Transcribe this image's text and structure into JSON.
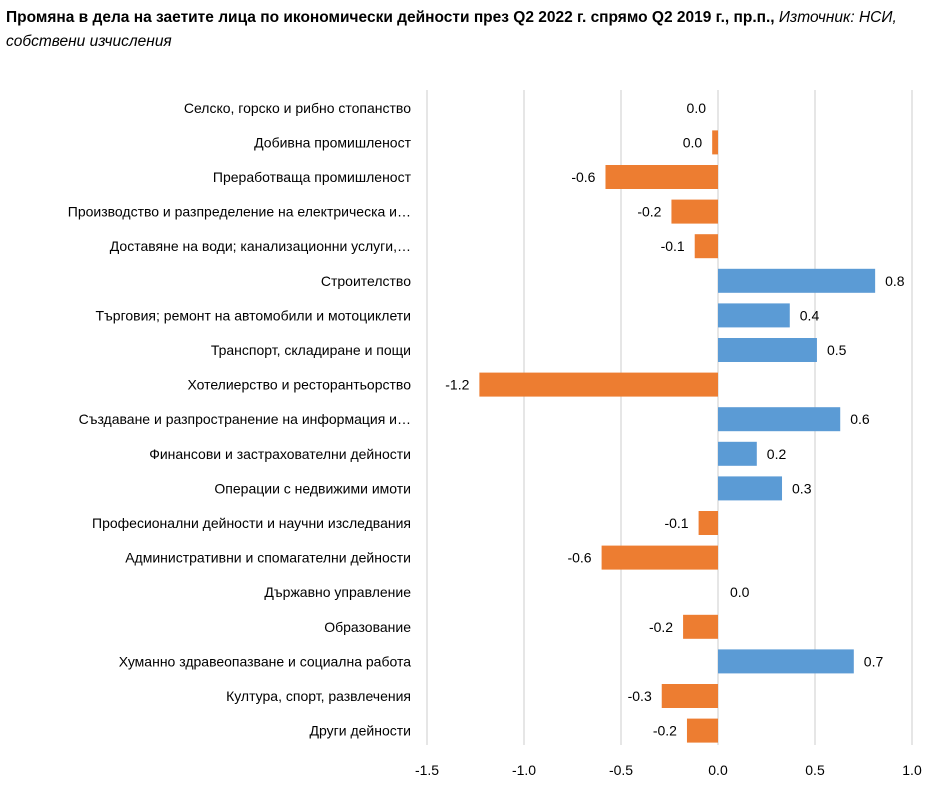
{
  "chart_data": {
    "type": "bar",
    "orientation": "horizontal",
    "title": "Промяна в дела на заетите лица по икономически дейности през Q2 2022 г. спрямо Q2 2019 г., пр.п.,",
    "subtitle": "Източник: НСИ, собствени изчисления",
    "xlabel": "",
    "ylabel": "",
    "xlim": [
      -1.5,
      1.0
    ],
    "xticks": [
      -1.5,
      -1.0,
      -0.5,
      0.0,
      0.5,
      1.0
    ],
    "xtick_labels": [
      "-1.5",
      "-1.0",
      "-0.5",
      "0.0",
      "0.5",
      "1.0"
    ],
    "grid": "vertical",
    "legend": "none",
    "colors": {
      "positive": "#5b9bd5",
      "negative": "#ed7d31",
      "grid": "#d9d9d9"
    },
    "categories": [
      "Селско, горско и рибно стопанство",
      "Добивна промишленост",
      "Преработваща промишленост",
      "Производство и разпределение на електрическа и…",
      "Доставяне на води; канализационни услуги,…",
      "Строителство",
      "Търговия; ремонт на автомобили и мотоциклети",
      "Транспорт, складиране и пощи",
      "Хотелиерство и ресторантьорство",
      "Създаване и разпространение на информация и…",
      "Финансови и застрахователни дейности",
      "Операции с недвижими имоти",
      "Професионални дейности и научни изследвания",
      "Административни и спомагателни дейности",
      "Държавно управление",
      "Образование",
      "Хуманно здравеопазване и социална работа",
      "Култура, спорт, развлечения",
      "Други дейности"
    ],
    "values": [
      0.0,
      -0.03,
      -0.58,
      -0.24,
      -0.12,
      0.81,
      0.37,
      0.51,
      -1.23,
      0.63,
      0.2,
      0.33,
      -0.1,
      -0.6,
      0.0,
      -0.18,
      0.7,
      -0.29,
      -0.16
    ],
    "data_labels": [
      "0.0",
      "0.0",
      "-0.6",
      "-0.2",
      "-0.1",
      "0.8",
      "0.4",
      "0.5",
      "-1.2",
      "0.6",
      "0.2",
      "0.3",
      "-0.1",
      "-0.6",
      "0.0",
      "-0.2",
      "0.7",
      "-0.3",
      "-0.2"
    ]
  }
}
